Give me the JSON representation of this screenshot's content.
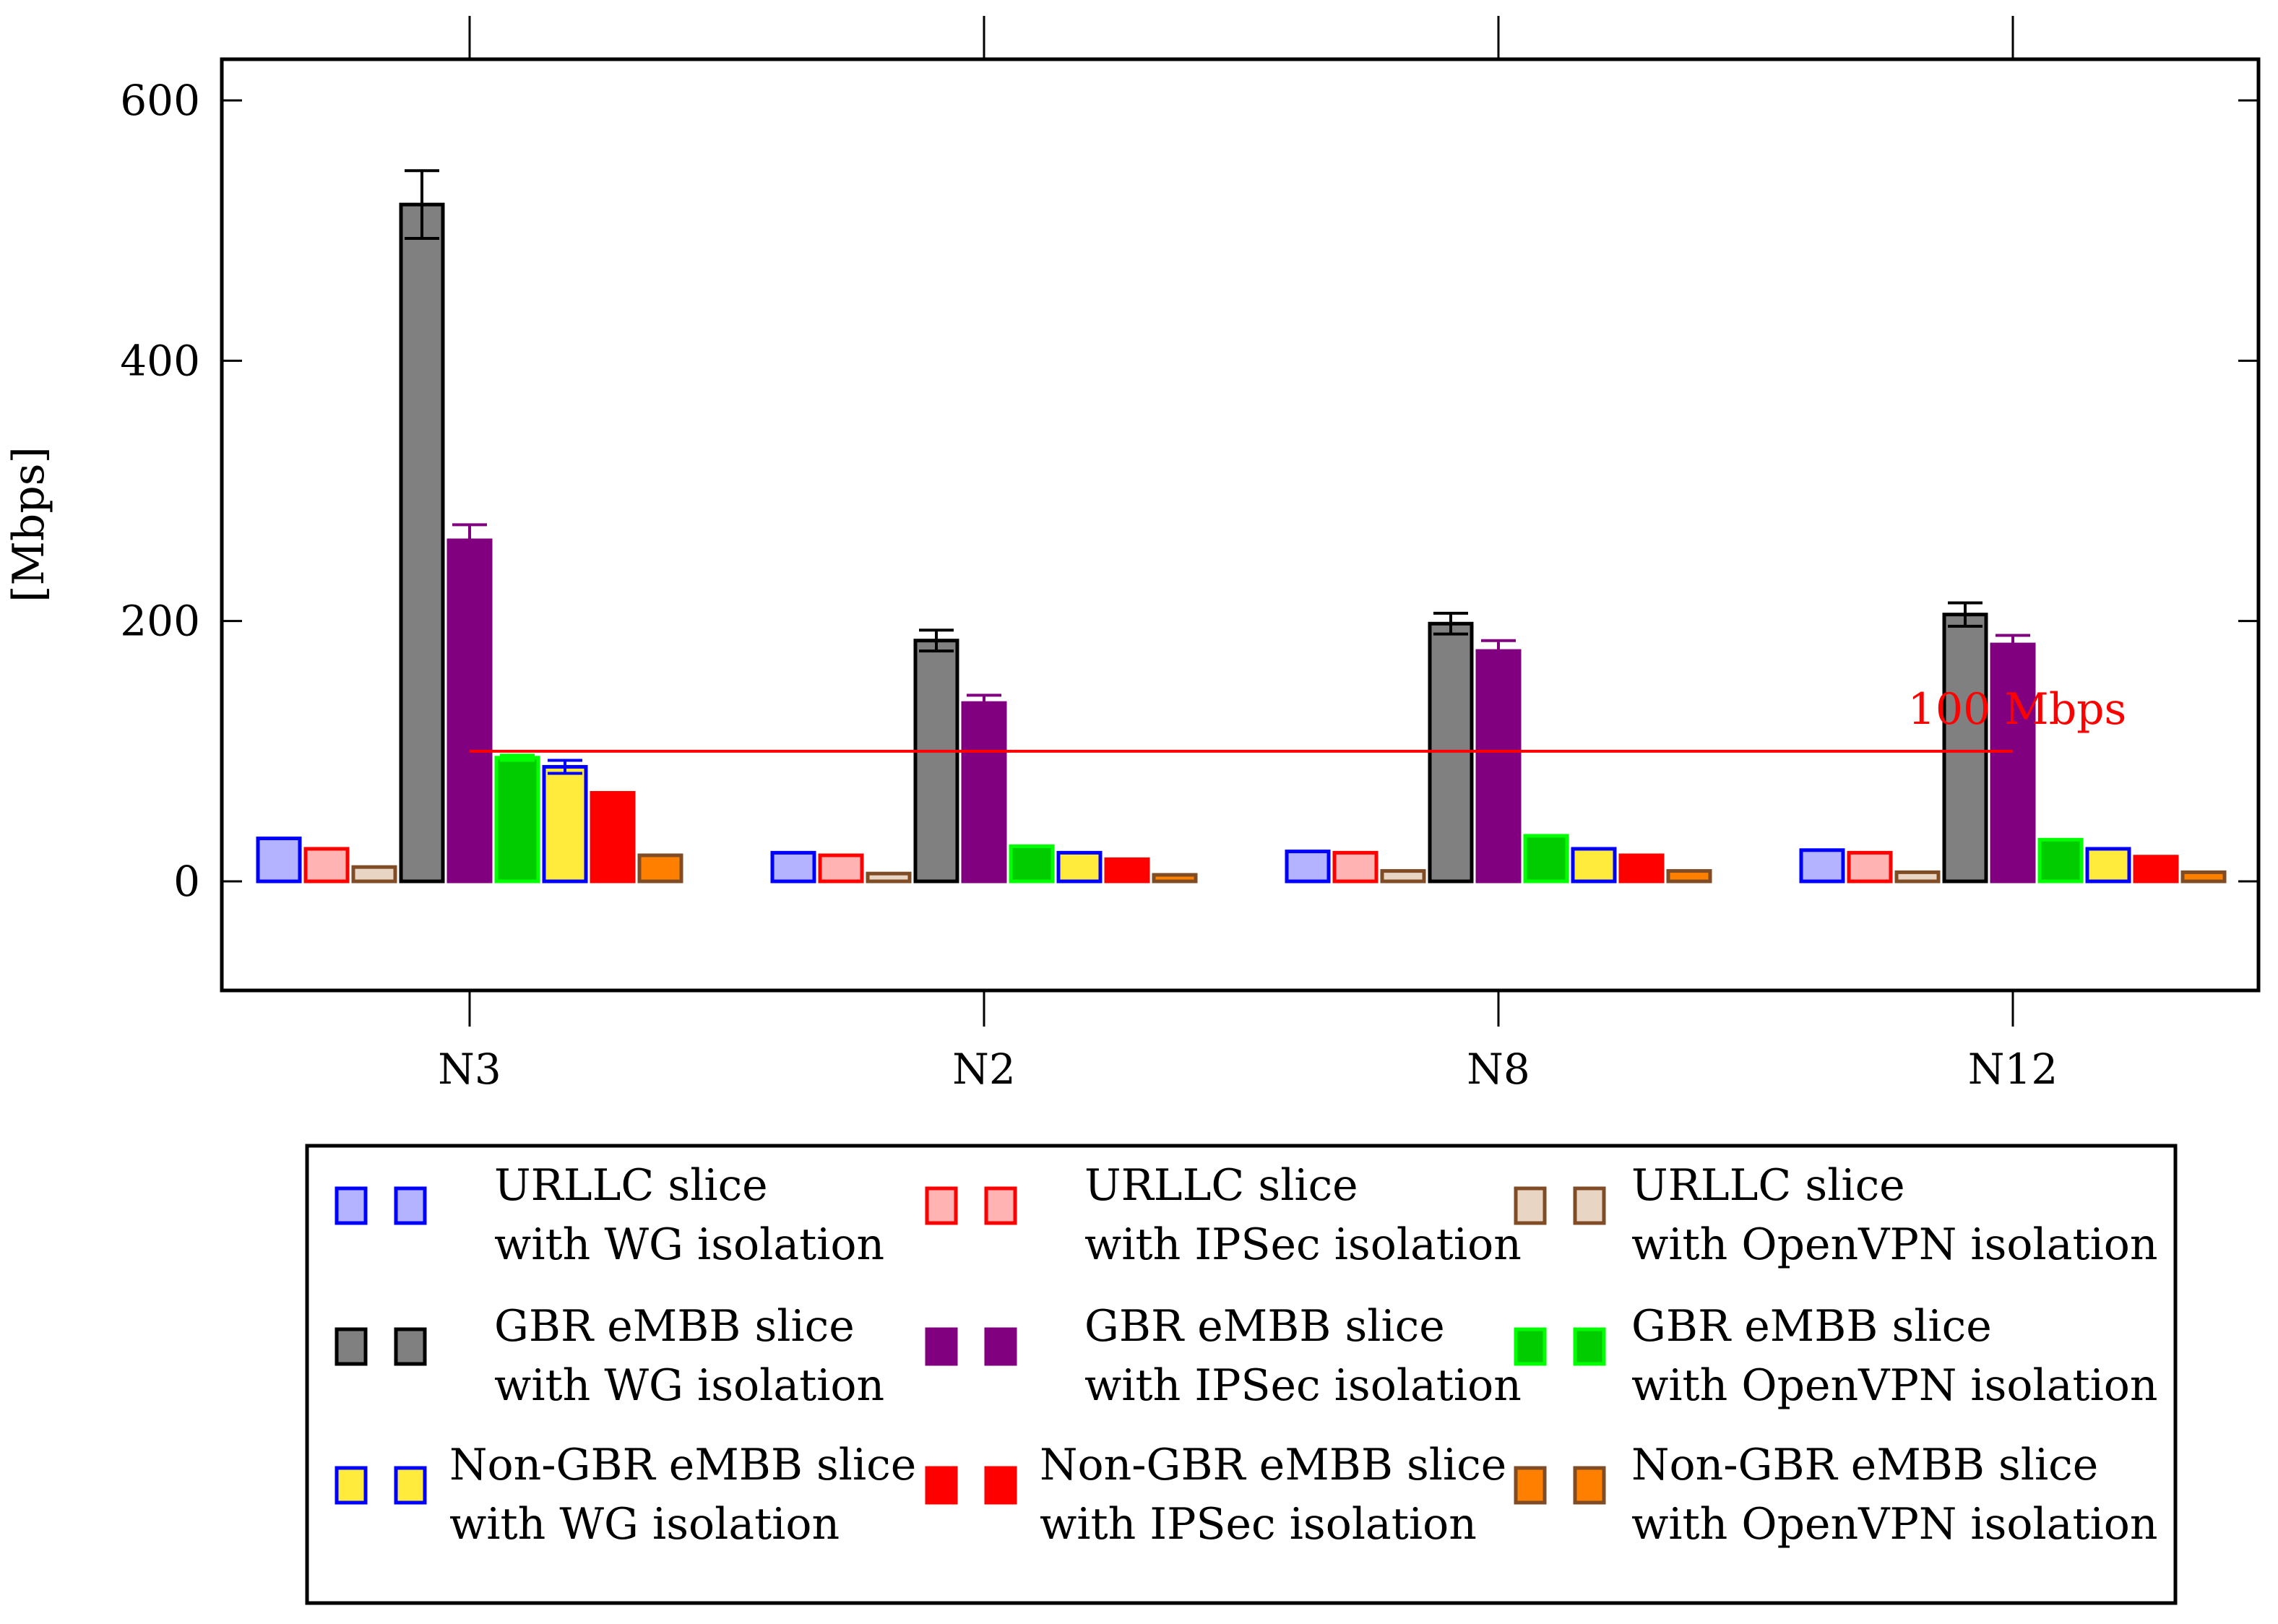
{
  "chart_data": {
    "type": "bar",
    "title": "",
    "xlabel": "",
    "ylabel": "[Mbps]",
    "ylim": [
      -80,
      630
    ],
    "yticks": [
      0,
      200,
      400,
      600
    ],
    "grid": false,
    "legend_position": "below",
    "categories": [
      "N3",
      "N2",
      "N8",
      "N12"
    ],
    "series": [
      {
        "name": "URLLC slice with WG isolation",
        "line1": "URLLC slice",
        "line2": "with WG isolation",
        "values": [
          33,
          22,
          23,
          24
        ],
        "errors": [
          0,
          0,
          0,
          0
        ],
        "fill": "#b3b3ff",
        "stroke": "#0000ff"
      },
      {
        "name": "URLLC slice with IPSec isolation",
        "line1": "URLLC slice",
        "line2": "with IPSec isolation",
        "values": [
          25,
          20,
          22,
          22
        ],
        "errors": [
          0,
          0,
          0,
          0
        ],
        "fill": "#ffb3b3",
        "stroke": "#ff0000"
      },
      {
        "name": "URLLC slice with OpenVPN isolation",
        "line1": "URLLC slice",
        "line2": "with OpenVPN isolation",
        "values": [
          11,
          6,
          8,
          7
        ],
        "errors": [
          0,
          0,
          0,
          0
        ],
        "fill": "#e8d5c4",
        "stroke": "#7f4c26"
      },
      {
        "name": "GBR eMBB slice with WG isolation",
        "line1": "GBR eMBB slice",
        "line2": "with WG isolation",
        "values": [
          520,
          185,
          198,
          205
        ],
        "errors": [
          26,
          8,
          8,
          9
        ],
        "fill": "#808080",
        "stroke": "#000000"
      },
      {
        "name": "GBR eMBB slice with IPSec isolation",
        "line1": "GBR eMBB slice",
        "line2": "with IPSec isolation",
        "values": [
          262,
          137,
          177,
          182
        ],
        "errors": [
          12,
          6,
          8,
          7
        ],
        "fill": "#800080",
        "stroke": "#800080"
      },
      {
        "name": "GBR eMBB slice with OpenVPN isolation",
        "line1": "GBR eMBB slice",
        "line2": "with OpenVPN isolation",
        "values": [
          95,
          27,
          35,
          32
        ],
        "errors": [
          2,
          0,
          0,
          0
        ],
        "fill": "#00cc00",
        "stroke": "#00ff00"
      },
      {
        "name": "Non-GBR eMBB slice with WG isolation",
        "line1": "Non-GBR eMBB slice",
        "line2": "with WG isolation",
        "values": [
          88,
          22,
          25,
          25
        ],
        "errors": [
          5,
          0,
          0,
          0
        ],
        "fill": "#ffeb3b",
        "stroke": "#0000ff"
      },
      {
        "name": "Non-GBR eMBB slice with IPSec isolation",
        "line1": "Non-GBR eMBB slice",
        "line2": "with IPSec isolation",
        "values": [
          68,
          17,
          20,
          19
        ],
        "errors": [
          0,
          0,
          0,
          0
        ],
        "fill": "#ff0000",
        "stroke": "#ff0000"
      },
      {
        "name": "Non-GBR eMBB slice with OpenVPN isolation",
        "line1": "Non-GBR eMBB slice",
        "line2": "with OpenVPN isolation",
        "values": [
          20,
          5,
          8,
          7
        ],
        "errors": [
          0,
          0,
          0,
          0
        ],
        "fill": "#ff8000",
        "stroke": "#7f4c26"
      }
    ],
    "reference_line": {
      "value": 100,
      "label": "100 Mbps",
      "color": "#ff0000",
      "from_category": "N3",
      "to_category": "N12"
    }
  }
}
